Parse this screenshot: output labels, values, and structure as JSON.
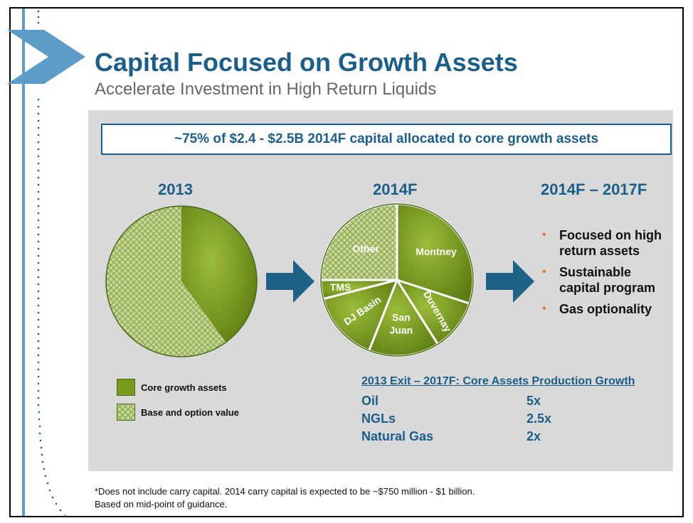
{
  "header": {
    "title": "Capital Focused on Growth Assets",
    "subtitle": "Accelerate Investment in High Return Liquids"
  },
  "callout": "~75% of $2.4 - $2.5B 2014F capital allocated to core growth assets",
  "colors": {
    "accent": "#1c5e8a",
    "core": "#7a9a1e",
    "base": "#c6d79a",
    "bullet": "#e07b39",
    "arrow": "#1f6287"
  },
  "icons": [
    "right-arrow-icon",
    "chevron-logo-icon"
  ],
  "periods": {
    "left": "2013",
    "middle": "2014F",
    "right": "2014F – 2017F"
  },
  "bullets": [
    "Focused on high return assets",
    "Sustainable capital program",
    "Gas optionality"
  ],
  "legend": {
    "core": "Core growth assets",
    "base": "Base and option value"
  },
  "growth": {
    "title": "2013 Exit – 2017F: Core Assets Production Growth",
    "rows": [
      {
        "label": "Oil",
        "value": "5x"
      },
      {
        "label": "NGLs",
        "value": "2.5x"
      },
      {
        "label": "Natural Gas",
        "value": "2x"
      }
    ]
  },
  "footnotes": [
    "*Does not include carry capital. 2014 carry capital is expected to be ~$750 million - $1 billion.",
    "Based on mid-point of guidance."
  ],
  "chart_data": [
    {
      "type": "pie",
      "title": "2013",
      "slices": [
        {
          "label": "Core growth assets",
          "value": 40,
          "kind": "core"
        },
        {
          "label": "Base and option value",
          "value": 60,
          "kind": "base"
        }
      ]
    },
    {
      "type": "pie",
      "title": "2014F",
      "slices": [
        {
          "label": "Montney",
          "value": 30,
          "kind": "core"
        },
        {
          "label": "Duvernay",
          "value": 11,
          "kind": "core"
        },
        {
          "label": "San Juan",
          "value": 15,
          "kind": "core"
        },
        {
          "label": "DJ Basin",
          "value": 15,
          "kind": "core"
        },
        {
          "label": "TMS",
          "value": 4,
          "kind": "core"
        },
        {
          "label": "Other",
          "value": 25,
          "kind": "base"
        }
      ]
    }
  ]
}
